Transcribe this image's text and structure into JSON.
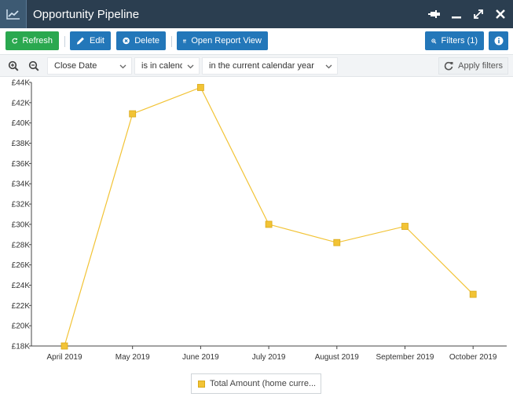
{
  "window": {
    "title": "Opportunity Pipeline"
  },
  "toolbar": {
    "refresh_label": "Refresh",
    "edit_label": "Edit",
    "delete_label": "Delete",
    "report_label": "Open Report View",
    "filters_label": "Filters (1)"
  },
  "filters": {
    "field": "Close Date",
    "operator": "is in calendar",
    "value": "in the current calendar year",
    "apply_label": "Apply filters"
  },
  "colors": {
    "header_bg": "#2b3e50",
    "accent_blue": "#2377b9",
    "accent_green": "#2aa84f",
    "series": "#f2c335"
  },
  "icons": [
    "line-chart-icon",
    "pin-icon",
    "minimize-icon",
    "expand-icon",
    "close-icon",
    "refresh-icon",
    "pencil-icon",
    "delete-circle-icon",
    "table-icon",
    "zoom-search-icon",
    "info-icon",
    "zoom-in-icon",
    "zoom-out-icon",
    "chevron-down-icon"
  ],
  "chart_data": {
    "type": "line",
    "categories": [
      "April 2019",
      "May 2019",
      "June 2019",
      "July 2019",
      "August 2019",
      "September 2019",
      "October 2019"
    ],
    "series": [
      {
        "name": "Total Amount (home curre...",
        "values": [
          18000,
          40900,
          43500,
          30000,
          28200,
          29800,
          23100
        ]
      }
    ],
    "ylim": [
      18000,
      44000
    ],
    "yticks": [
      "£18K",
      "£20K",
      "£22K",
      "£24K",
      "£26K",
      "£28K",
      "£30K",
      "£32K",
      "£34K",
      "£36K",
      "£38K",
      "£40K",
      "£42K",
      "£44K"
    ],
    "ytick_values": [
      18000,
      20000,
      22000,
      24000,
      26000,
      28000,
      30000,
      32000,
      34000,
      36000,
      38000,
      40000,
      42000,
      44000
    ],
    "title": "",
    "xlabel": "",
    "ylabel": "",
    "grid": false,
    "legend": "bottom-center"
  }
}
